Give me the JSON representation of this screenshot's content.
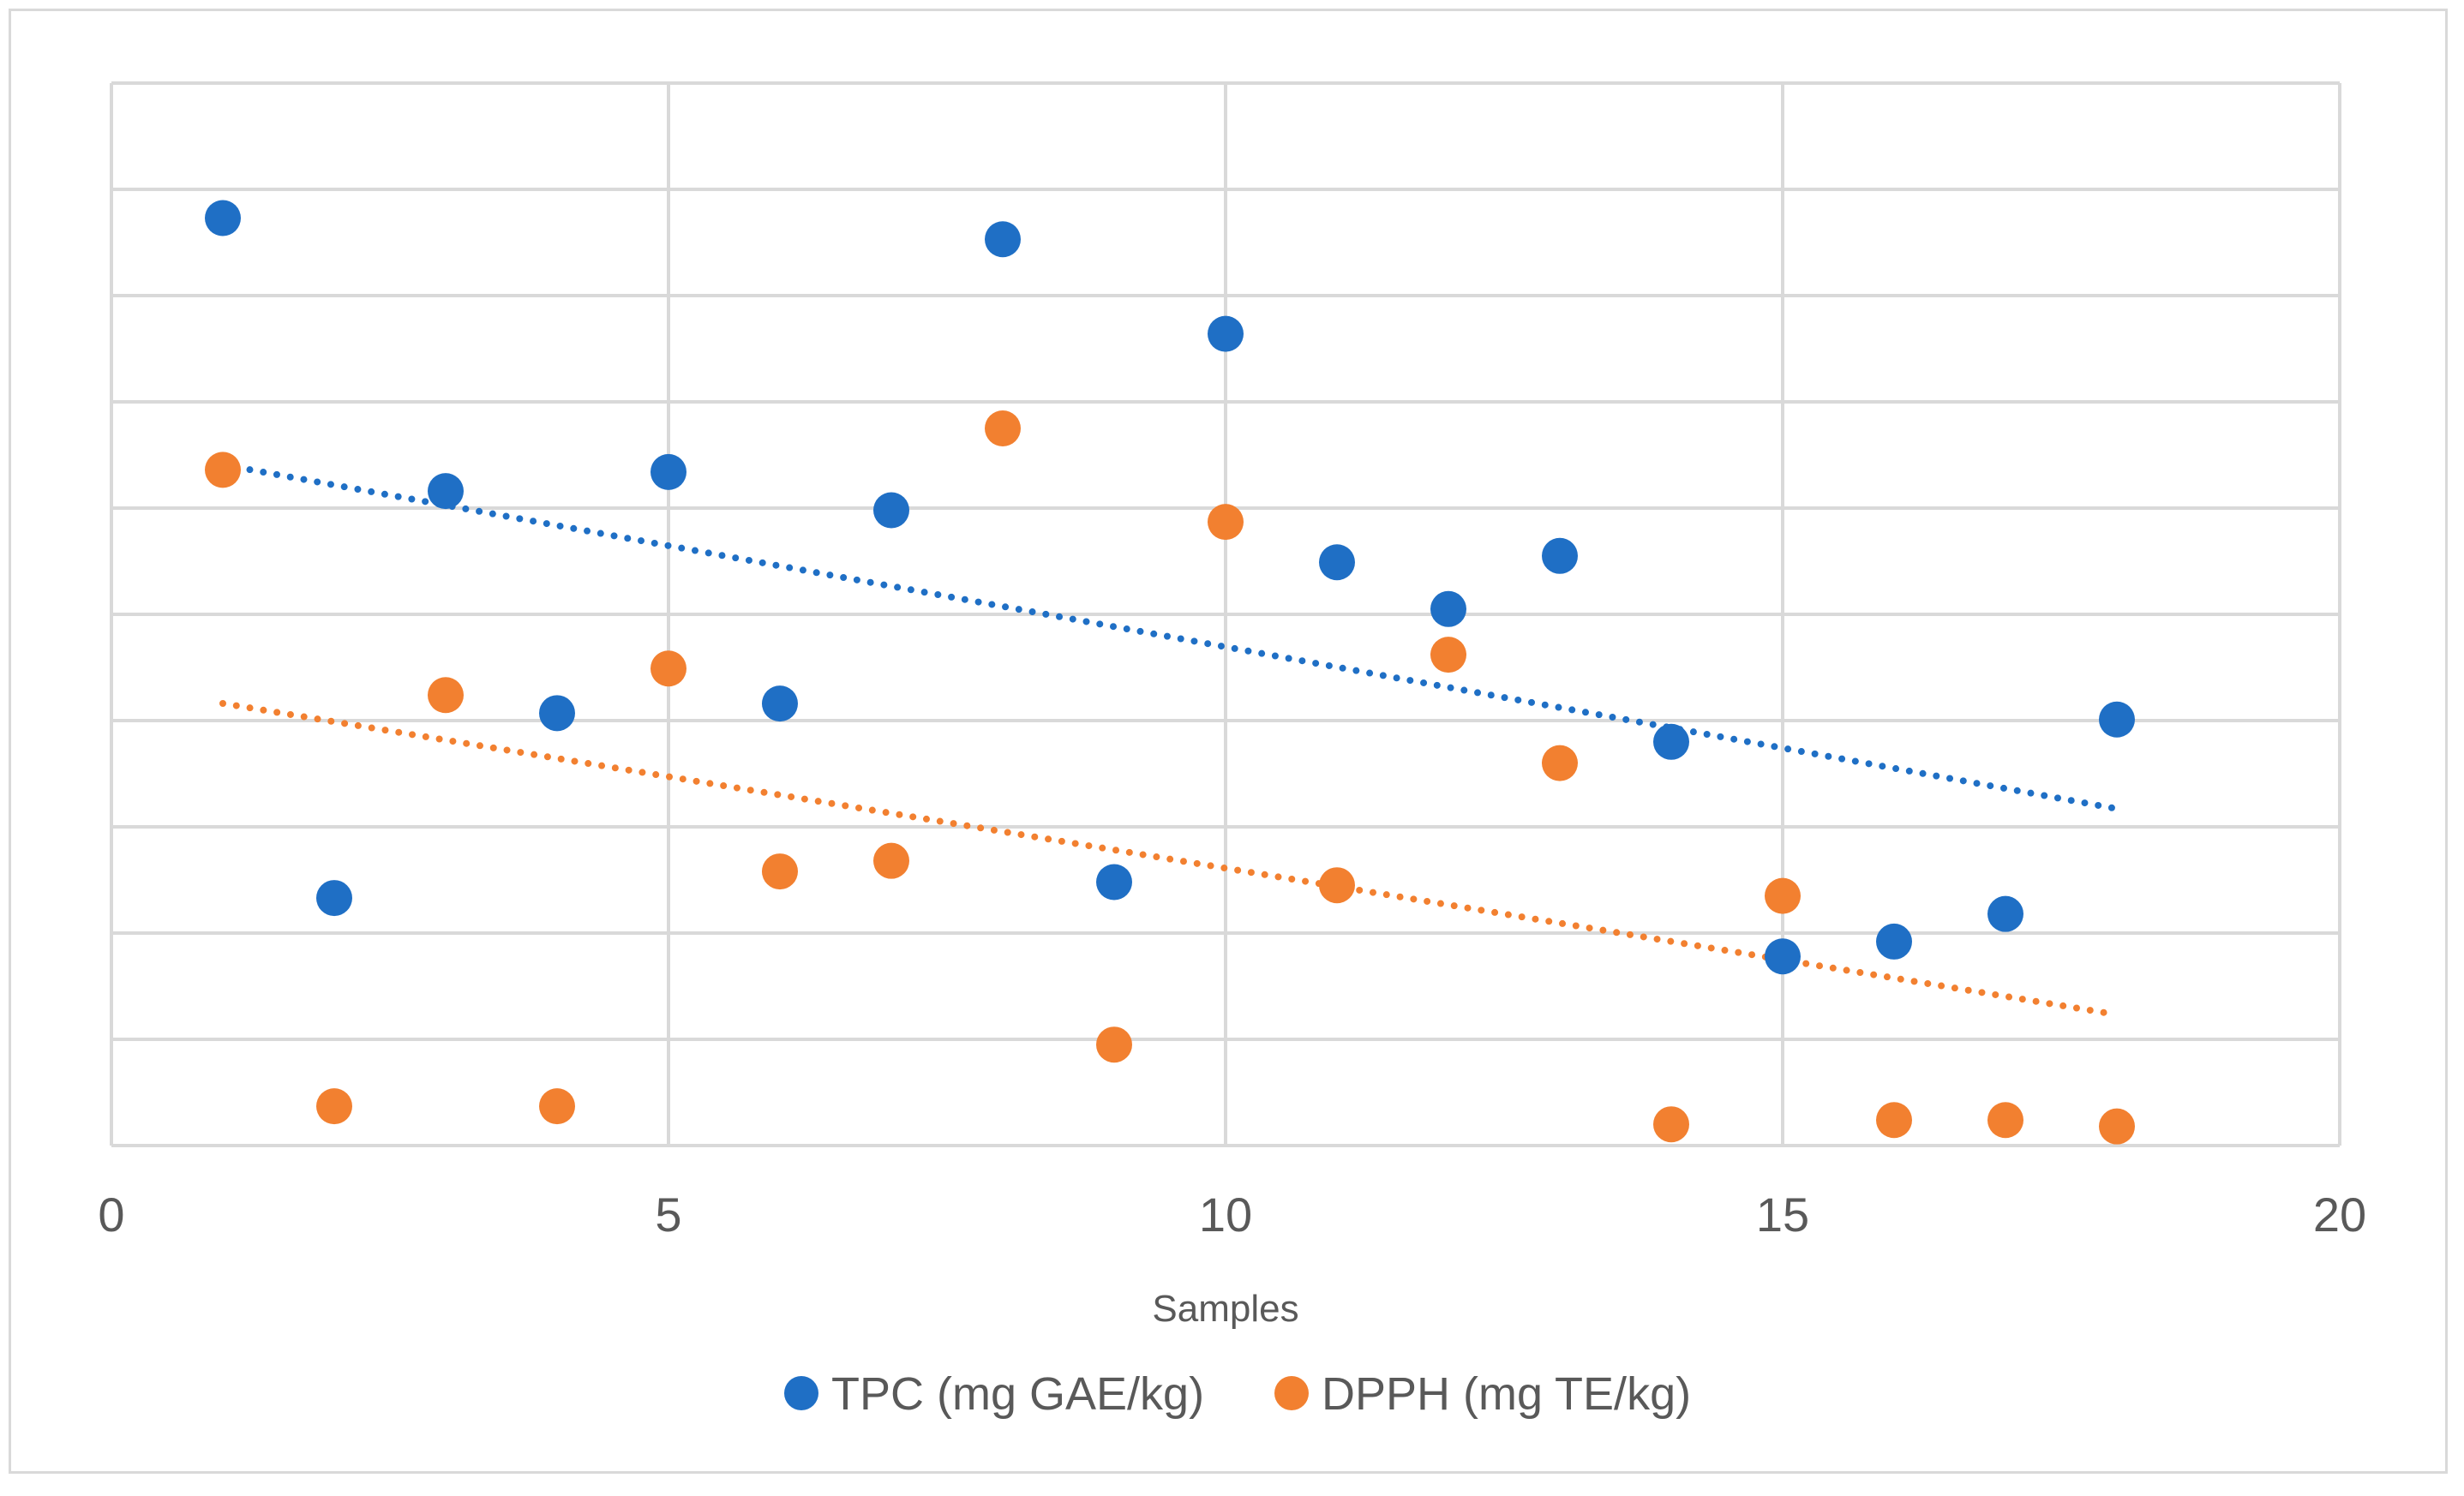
{
  "chart_data": {
    "type": "scatter",
    "title": "",
    "xlabel": "Samples",
    "ylabel": "",
    "xlim": [
      0,
      20
    ],
    "ylim": [
      0,
      10
    ],
    "x_ticks": [
      0,
      5,
      10,
      15,
      20
    ],
    "y_grid_count": 10,
    "grid": true,
    "legend_position": "bottom",
    "series": [
      {
        "name": "TPC (mg GAE/kg)",
        "color": "#1f6fc5",
        "trendline": "linear",
        "x": [
          1,
          2,
          3,
          4,
          5,
          6,
          7,
          8,
          9,
          10,
          11,
          12,
          13,
          14,
          15,
          16,
          17,
          18
        ],
        "y": [
          8.73,
          2.33,
          6.16,
          4.07,
          6.34,
          4.16,
          5.98,
          8.53,
          2.48,
          7.64,
          5.49,
          5.05,
          5.55,
          3.8,
          1.78,
          1.92,
          2.18,
          4.01
        ]
      },
      {
        "name": "DPPH (mg TE/kg)",
        "color": "#f28030",
        "trendline": "linear",
        "x": [
          1,
          2,
          3,
          4,
          5,
          6,
          7,
          8,
          9,
          10,
          11,
          12,
          13,
          14,
          15,
          16,
          17,
          18
        ],
        "y": [
          6.36,
          0.37,
          4.24,
          0.37,
          4.49,
          2.58,
          2.68,
          6.75,
          0.95,
          5.87,
          2.45,
          4.62,
          3.6,
          0.2,
          2.35,
          0.24,
          0.24,
          0.18
        ]
      }
    ]
  }
}
